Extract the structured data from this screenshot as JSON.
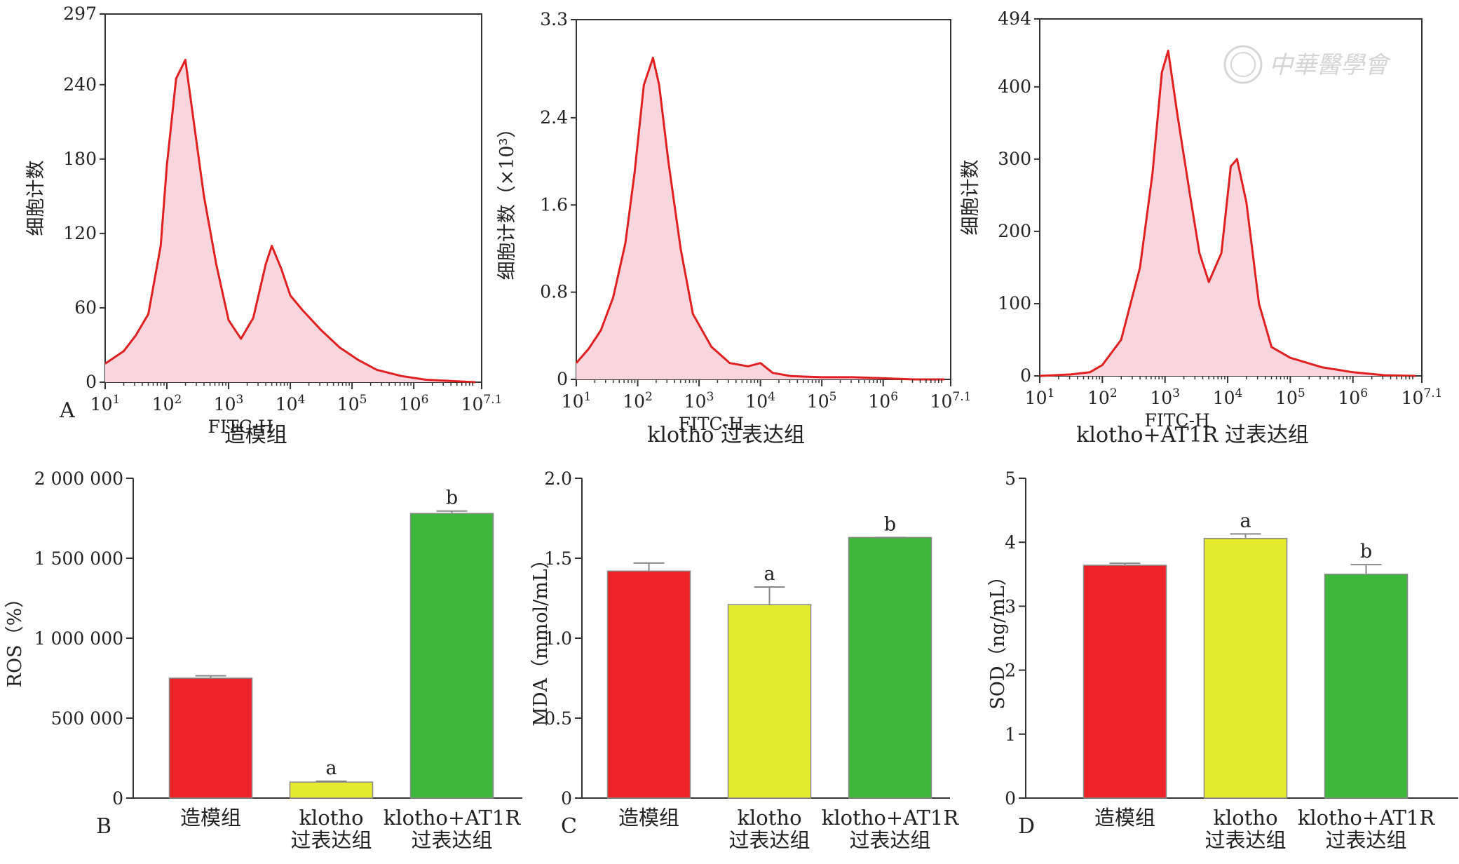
{
  "watermark": "中華醫學會",
  "chart_data": [
    {
      "id": "hist1",
      "type": "area",
      "panel": "A",
      "caption": "造模组",
      "xlabel": "FITC-H",
      "ylabel": "细胞计数",
      "x_scale": "log10",
      "xlim": [
        1,
        7.1
      ],
      "ylim": [
        0,
        297
      ],
      "x_ticks": [
        "10^1",
        "10^2",
        "10^3",
        "10^4",
        "10^5",
        "10^6",
        "10^7.1"
      ],
      "y_ticks": [
        "0",
        "60",
        "120",
        "180",
        "240",
        "297"
      ],
      "color": "#e02020",
      "fill": "#f9d5dd",
      "x": [
        1.0,
        1.3,
        1.5,
        1.7,
        1.9,
        2.0,
        2.15,
        2.3,
        2.45,
        2.6,
        2.8,
        3.0,
        3.2,
        3.4,
        3.6,
        3.7,
        3.85,
        4.0,
        4.2,
        4.5,
        4.8,
        5.1,
        5.4,
        5.8,
        6.2,
        6.6,
        7.0
      ],
      "y": [
        15,
        25,
        38,
        55,
        110,
        175,
        245,
        260,
        205,
        150,
        95,
        50,
        35,
        52,
        95,
        110,
        92,
        70,
        58,
        42,
        28,
        18,
        10,
        5,
        2,
        1,
        0
      ]
    },
    {
      "id": "hist2",
      "type": "area",
      "panel": "",
      "caption": "klotho 过表达组",
      "xlabel": "FITC-H",
      "ylabel": "细胞计数（×10³）",
      "x_scale": "log10",
      "xlim": [
        1,
        7.1
      ],
      "ylim": [
        0,
        3.3
      ],
      "x_ticks": [
        "10^1",
        "10^2",
        "10^3",
        "10^4",
        "10^5",
        "10^6",
        "10^7.1"
      ],
      "y_ticks": [
        "0",
        "0.8",
        "1.6",
        "2.4",
        "3.3"
      ],
      "color": "#e02020",
      "fill": "#f9d5dd",
      "x": [
        1.0,
        1.2,
        1.4,
        1.6,
        1.8,
        1.95,
        2.1,
        2.25,
        2.35,
        2.5,
        2.7,
        2.9,
        3.2,
        3.5,
        3.8,
        4.0,
        4.2,
        4.5,
        5.0,
        5.5,
        6.0,
        6.5,
        7.0
      ],
      "y": [
        0.15,
        0.28,
        0.45,
        0.75,
        1.25,
        1.9,
        2.7,
        2.95,
        2.7,
        2.0,
        1.2,
        0.6,
        0.3,
        0.15,
        0.12,
        0.15,
        0.06,
        0.03,
        0.02,
        0.02,
        0.01,
        0.0,
        0.0
      ]
    },
    {
      "id": "hist3",
      "type": "area",
      "panel": "",
      "caption": "klotho+AT1R 过表达组",
      "xlabel": "FITC-H",
      "ylabel": "细胞计数",
      "x_scale": "log10",
      "xlim": [
        1,
        7.1
      ],
      "ylim": [
        0,
        494
      ],
      "x_ticks": [
        "10^1",
        "10^2",
        "10^3",
        "10^4",
        "10^5",
        "10^6",
        "10^7.1"
      ],
      "y_ticks": [
        "0",
        "100",
        "200",
        "300",
        "400",
        "494"
      ],
      "color": "#e02020",
      "fill": "#f9d5dd",
      "x": [
        1.0,
        1.5,
        1.8,
        2.0,
        2.3,
        2.6,
        2.8,
        2.95,
        3.05,
        3.2,
        3.4,
        3.55,
        3.7,
        3.9,
        4.05,
        4.15,
        4.3,
        4.5,
        4.7,
        5.0,
        5.5,
        6.0,
        6.5,
        7.0
      ],
      "y": [
        0,
        2,
        5,
        15,
        50,
        150,
        280,
        420,
        450,
        360,
        250,
        170,
        130,
        170,
        290,
        300,
        240,
        100,
        40,
        25,
        12,
        5,
        1,
        0
      ]
    },
    {
      "id": "bar1",
      "type": "bar",
      "panel": "B",
      "ylabel": "ROS（%）",
      "ylim": [
        0,
        2000000
      ],
      "y_ticks": [
        "0",
        "500 000",
        "1 000 000",
        "1 500 000",
        "2 000 000"
      ],
      "y_tick_values": [
        0,
        500000,
        1000000,
        1500000,
        2000000
      ],
      "categories": [
        [
          "造模组"
        ],
        [
          "klotho",
          "过表达组"
        ],
        [
          "klotho+AT1R",
          "过表达组"
        ]
      ],
      "values": [
        750000,
        100000,
        1780000
      ],
      "errors": [
        15000,
        5000,
        15000
      ],
      "labels": [
        "",
        "a",
        "b"
      ],
      "colors": [
        "#ed2227",
        "#e5ea30",
        "#3fb73a"
      ]
    },
    {
      "id": "bar2",
      "type": "bar",
      "panel": "C",
      "ylabel": "MDA（mmol/mL）",
      "ylim": [
        0,
        2.0
      ],
      "y_ticks": [
        "0",
        "0.5",
        "1.0",
        "1.5",
        "2.0"
      ],
      "y_tick_values": [
        0,
        0.5,
        1.0,
        1.5,
        2.0
      ],
      "categories": [
        [
          "造模组"
        ],
        [
          "klotho",
          "过表达组"
        ],
        [
          "klotho+AT1R",
          "过表达组"
        ]
      ],
      "values": [
        1.42,
        1.21,
        1.63
      ],
      "errors": [
        0.05,
        0.11,
        0.0
      ],
      "labels": [
        "",
        "a",
        "b"
      ],
      "colors": [
        "#ed2227",
        "#e5ea30",
        "#3fb73a"
      ]
    },
    {
      "id": "bar3",
      "type": "bar",
      "panel": "D",
      "ylabel": "SOD（ng/mL）",
      "ylim": [
        0,
        5
      ],
      "y_ticks": [
        "0",
        "1",
        "2",
        "3",
        "4",
        "5"
      ],
      "y_tick_values": [
        0,
        1,
        2,
        3,
        4,
        5
      ],
      "categories": [
        [
          "造模组"
        ],
        [
          "klotho",
          "过表达组"
        ],
        [
          "klotho+AT1R",
          "过表达组"
        ]
      ],
      "values": [
        3.64,
        4.06,
        3.5
      ],
      "errors": [
        0.03,
        0.07,
        0.15
      ],
      "labels": [
        "",
        "a",
        "b"
      ],
      "colors": [
        "#ed2227",
        "#e5ea30",
        "#3fb73a"
      ]
    }
  ]
}
